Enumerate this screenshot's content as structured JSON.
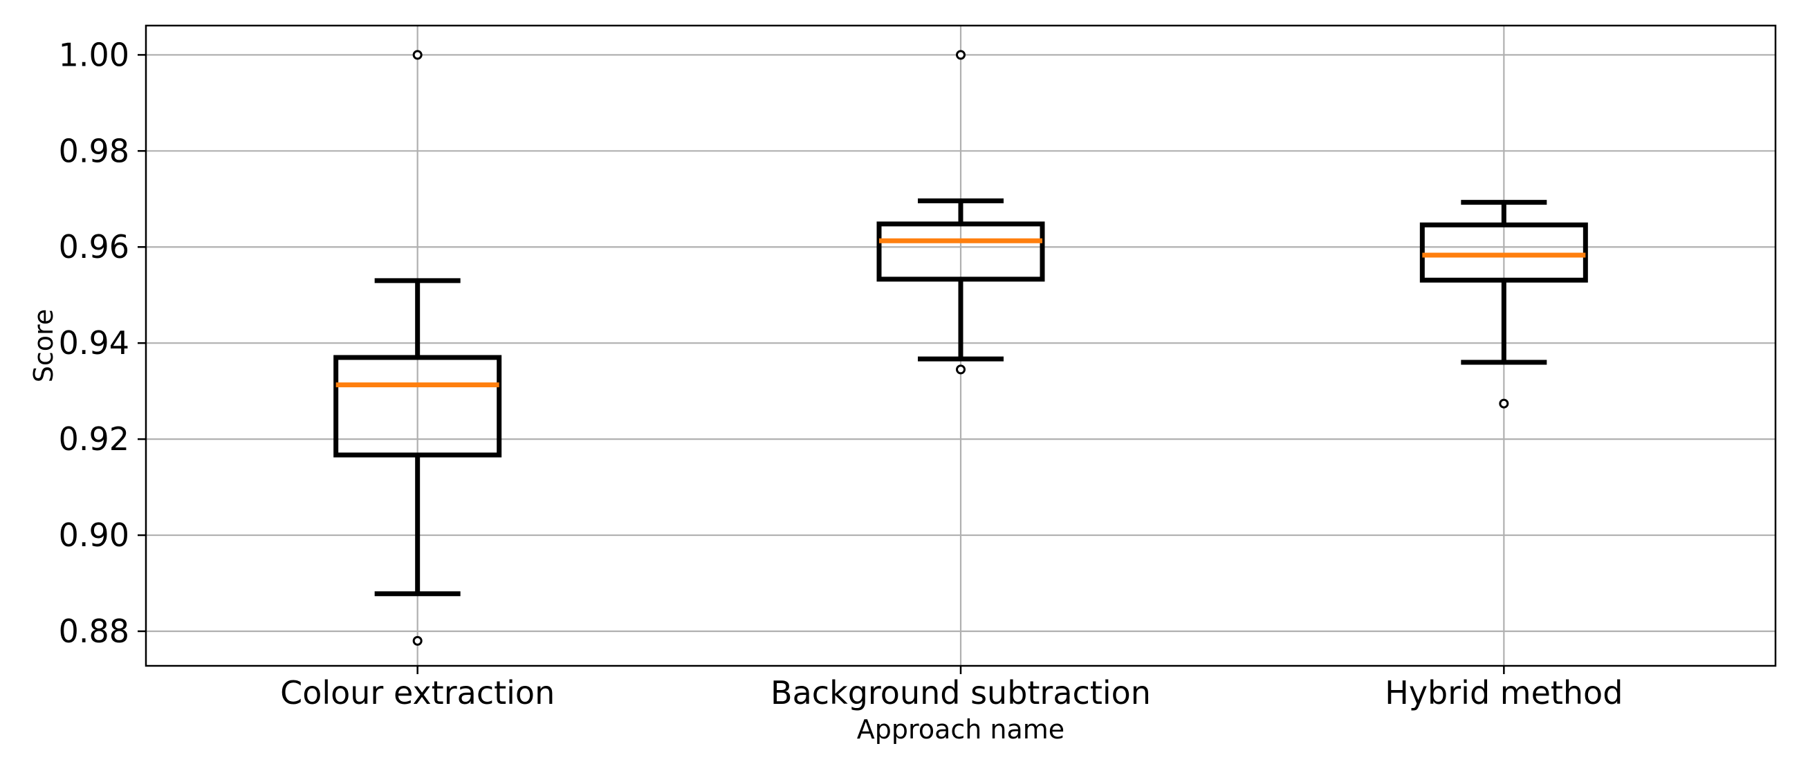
{
  "chart_data": {
    "type": "box",
    "title": "",
    "xlabel": "Approach name",
    "ylabel": "Score",
    "categories": [
      "Colour extraction",
      "Background subtraction",
      "Hybrid method"
    ],
    "series": [
      {
        "name": "Colour extraction",
        "whisker_low": 0.8878,
        "q1": 0.9167,
        "median": 0.9313,
        "q3": 0.937,
        "whisker_high": 0.953,
        "outliers": [
          1.0,
          0.878
        ]
      },
      {
        "name": "Background subtraction",
        "whisker_low": 0.9367,
        "q1": 0.9533,
        "median": 0.9613,
        "q3": 0.9648,
        "whisker_high": 0.9696,
        "outliers": [
          1.0,
          0.9345
        ]
      },
      {
        "name": "Hybrid method",
        "whisker_low": 0.936,
        "q1": 0.9531,
        "median": 0.9583,
        "q3": 0.9646,
        "whisker_high": 0.9693,
        "outliers": [
          0.9274
        ]
      }
    ],
    "y_ticks": [
      "0.88",
      "0.90",
      "0.92",
      "0.94",
      "0.96",
      "0.98",
      "1.00"
    ],
    "y_tick_values": [
      0.88,
      0.9,
      0.92,
      0.94,
      0.96,
      0.98,
      1.0
    ],
    "ylim": [
      0.8728,
      1.0061
    ],
    "grid": true,
    "legend": "none",
    "colors": {
      "box": "#000000",
      "median": "#ff7f0e",
      "grid": "#b0b0b0",
      "outlier_stroke": "#000000",
      "background": "#ffffff"
    }
  }
}
